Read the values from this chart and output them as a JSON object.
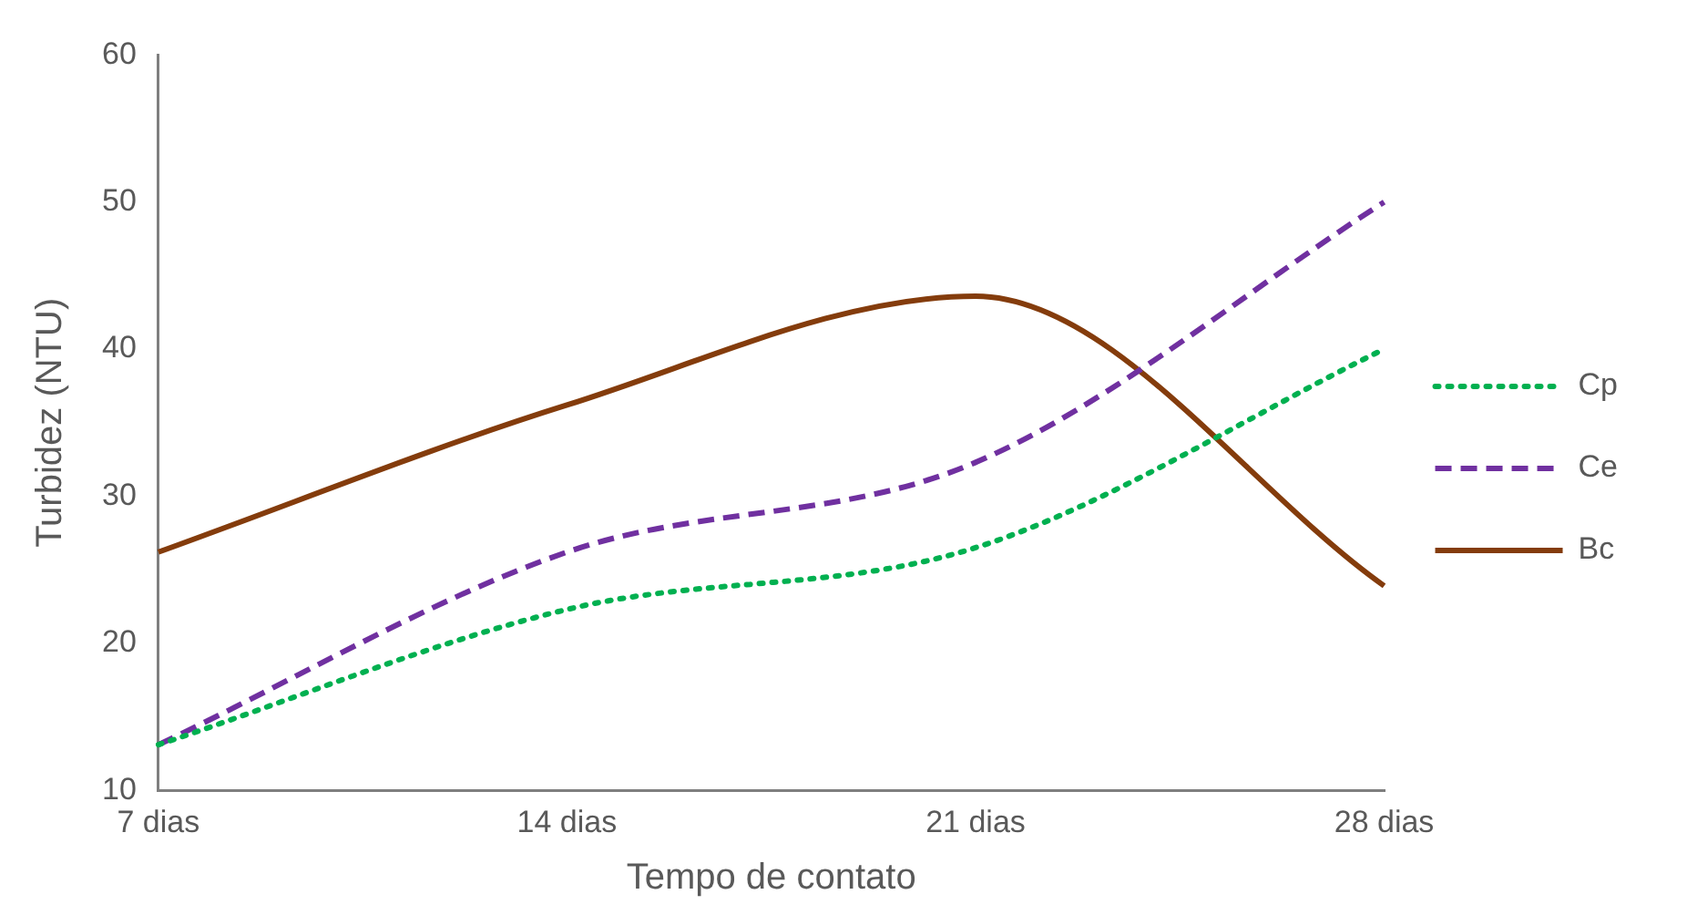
{
  "chart_data": {
    "type": "line",
    "xlabel": "Tempo de contato",
    "ylabel": "Turbidez (NTU)",
    "categories": [
      "7 dias",
      "14 dias",
      "21 dias",
      "28 dias"
    ],
    "series": [
      {
        "name": "Cp",
        "color": "#00b050",
        "line_style": "dotted",
        "values": [
          13.1,
          22.3,
          26.5,
          40
        ]
      },
      {
        "name": "Ce",
        "color": "#7030a0",
        "line_style": "dashed",
        "values": [
          13.1,
          26.2,
          32.3,
          50
        ]
      },
      {
        "name": "Bc",
        "color": "#843c0c",
        "line_style": "solid",
        "values": [
          26.2,
          36.2,
          43.6,
          23.9
        ]
      }
    ],
    "ylim": [
      10,
      60
    ],
    "yticks": [
      10,
      20,
      30,
      40,
      50,
      60
    ],
    "grid": false,
    "legend": "right",
    "marker": "none"
  }
}
